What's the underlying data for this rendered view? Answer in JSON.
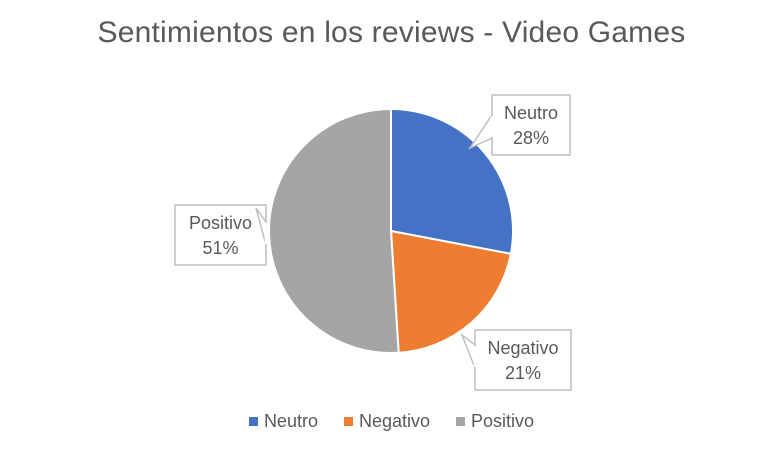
{
  "chart_data": {
    "type": "pie",
    "title": "Sentimientos en los reviews - Video Games",
    "categories": [
      "Neutro",
      "Negativo",
      "Positivo"
    ],
    "values": [
      28,
      21,
      51
    ],
    "labels": [
      "28%",
      "21%",
      "51%"
    ],
    "colors": [
      "#4472c4",
      "#ed7d31",
      "#a5a5a5"
    ],
    "legend_position": "bottom",
    "data_labels": "callouts"
  }
}
